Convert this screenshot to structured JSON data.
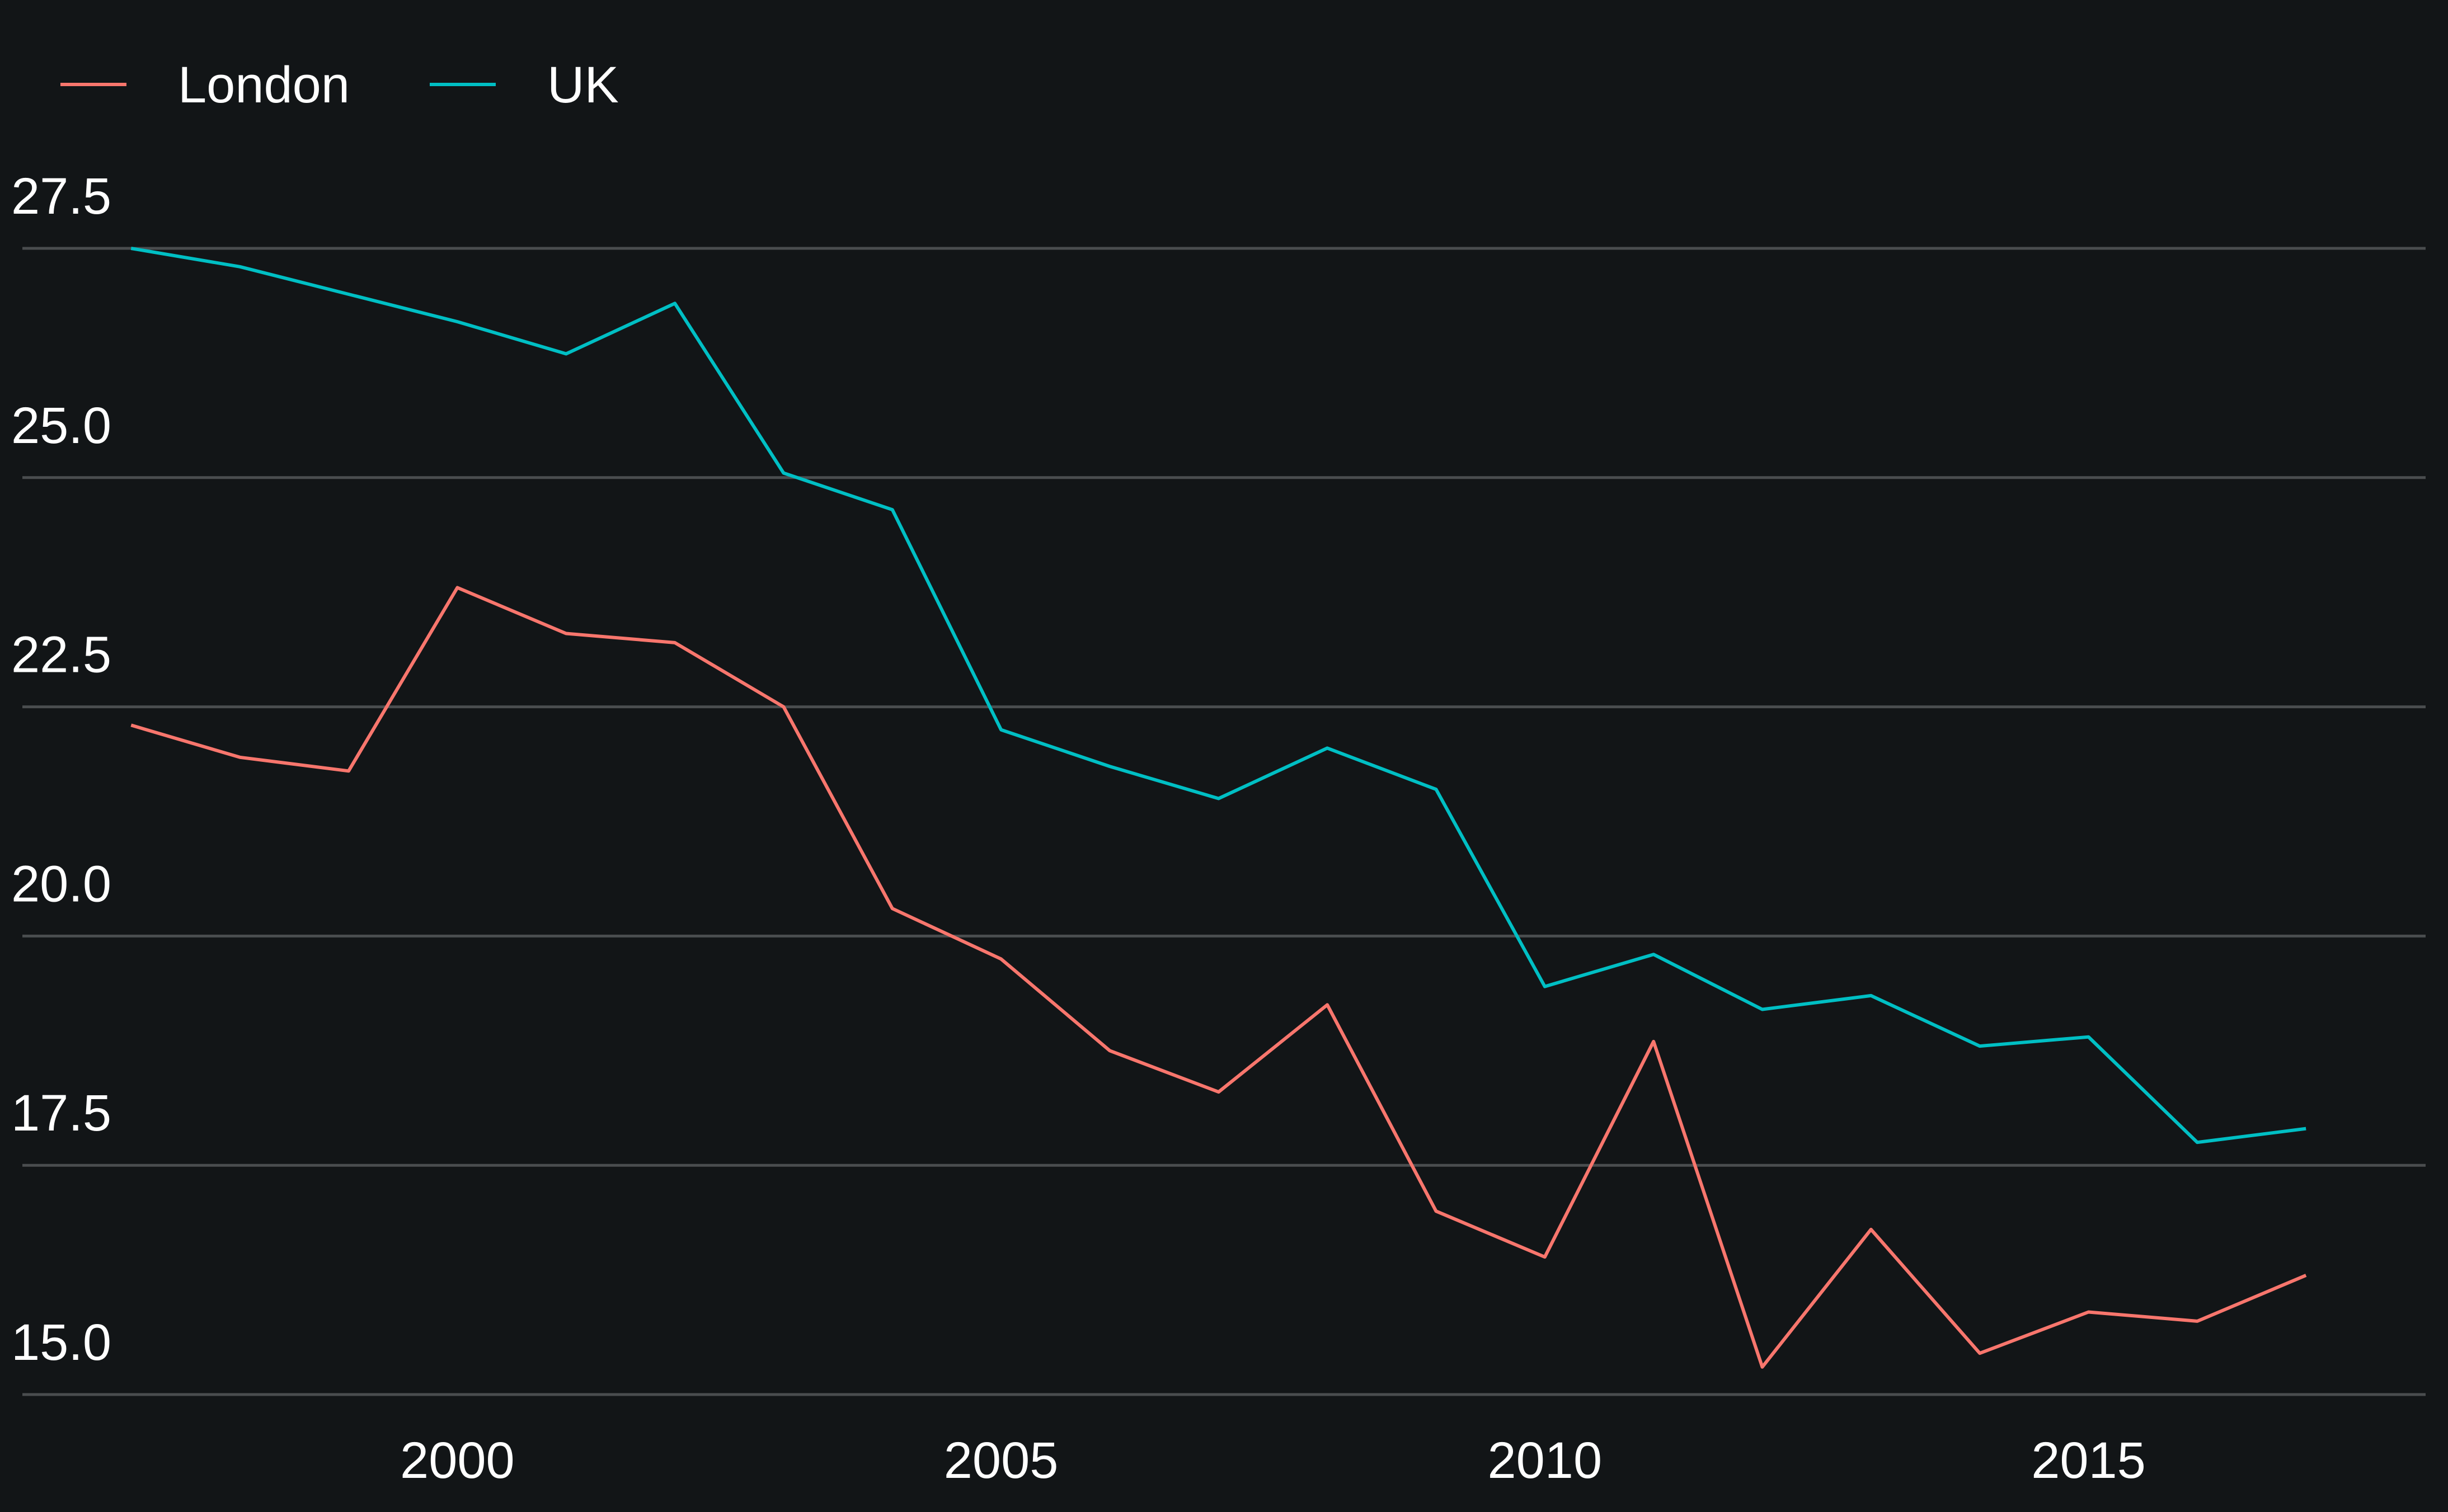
{
  "chart_data": {
    "type": "line",
    "title": "",
    "xlabel": "",
    "ylabel": "",
    "x": [
      1997,
      1998,
      1999,
      2000,
      2001,
      2002,
      2003,
      2004,
      2005,
      2006,
      2007,
      2008,
      2009,
      2010,
      2011,
      2012,
      2013,
      2014,
      2015,
      2016,
      2017
    ],
    "series": [
      {
        "name": "London",
        "color": "#f8766d",
        "values": [
          22.3,
          21.95,
          21.8,
          23.8,
          23.3,
          23.2,
          22.5,
          20.3,
          19.75,
          18.75,
          18.3,
          19.25,
          17.0,
          16.5,
          18.85,
          15.3,
          16.8,
          15.45,
          15.9,
          15.8,
          16.3
        ]
      },
      {
        "name": "UK",
        "color": "#00bfc4",
        "values": [
          27.5,
          27.3,
          27.0,
          26.7,
          26.35,
          26.9,
          25.05,
          24.65,
          22.25,
          21.85,
          21.5,
          22.05,
          21.6,
          19.45,
          19.8,
          19.2,
          19.35,
          18.8,
          18.9,
          17.75,
          17.9
        ]
      }
    ],
    "x_ticks": [
      "2000",
      "2005",
      "2010",
      "2015"
    ],
    "x_tick_values": [
      2000,
      2005,
      2010,
      2015
    ],
    "y_ticks": [
      "15.0",
      "17.5",
      "20.0",
      "22.5",
      "25.0",
      "27.5"
    ],
    "y_tick_values": [
      15.0,
      17.5,
      20.0,
      22.5,
      25.0,
      27.5
    ],
    "xlim": [
      1996.0,
      2018.1
    ],
    "ylim": [
      14.4,
      28.3
    ],
    "grid": "horizontal",
    "legend_position": "top-left",
    "background": "#121517",
    "grid_color": "#4a4d4f"
  }
}
